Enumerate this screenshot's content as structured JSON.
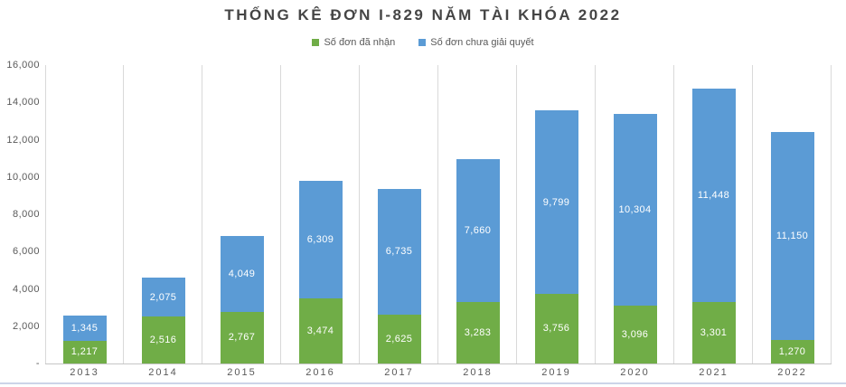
{
  "title": "THỐNG KÊ ĐƠN I-829 NĂM TÀI KHÓA 2022",
  "legend": [
    {
      "label": "Số đơn đã nhận",
      "color": "#70ad47"
    },
    {
      "label": "Số đơn chưa giải quyết",
      "color": "#5b9bd5"
    }
  ],
  "chart_data": {
    "type": "bar",
    "stacked": true,
    "title": "THỐNG KÊ ĐƠN I-829 NĂM TÀI KHÓA 2022",
    "categories": [
      "2013",
      "2014",
      "2015",
      "2016",
      "2017",
      "2018",
      "2019",
      "2020",
      "2021",
      "2022"
    ],
    "series": [
      {
        "name": "Số đơn đã nhận",
        "color": "#70ad47",
        "values": [
          1217,
          2516,
          2767,
          3474,
          2625,
          3283,
          3756,
          3096,
          3301,
          1270
        ]
      },
      {
        "name": "Số đơn chưa giải quyết",
        "color": "#5b9bd5",
        "values": [
          1345,
          2075,
          4049,
          6309,
          6735,
          7660,
          9799,
          10304,
          11448,
          11150
        ]
      }
    ],
    "xlabel": "",
    "ylabel": "",
    "ylim": [
      0,
      16000
    ],
    "ytick_step": 2000,
    "ytick_labels": [
      "-",
      "2,000",
      "4,000",
      "6,000",
      "8,000",
      "10,000",
      "12,000",
      "14,000",
      "16,000"
    ],
    "grid": "vertical-category-separators-only",
    "legend_position": "top",
    "data_labels": "inside-center-white"
  },
  "colors": {
    "background": "#ffffff",
    "title_text": "#454545",
    "axis_text": "#595959",
    "gridline": "#d9d9d9",
    "axis_line": "#c6c6c6",
    "data_label_text": "#ffffff",
    "chart_bottom_border": "#ccd4e8"
  }
}
